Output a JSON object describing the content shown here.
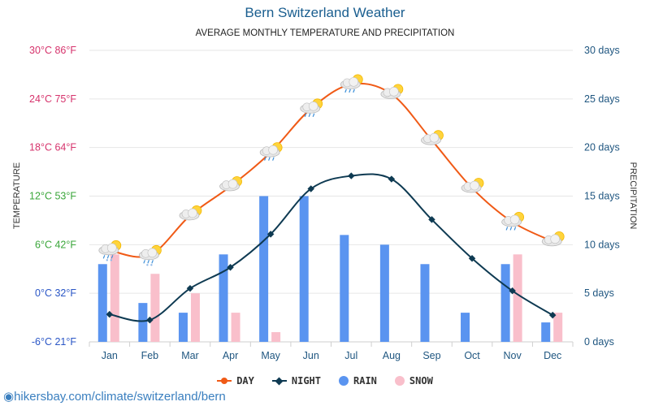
{
  "chart_data": {
    "type": "bar+line",
    "title": "Bern Switzerland Weather",
    "subtitle": "AVERAGE MONTHLY TEMPERATURE AND PRECIPITATION",
    "ylabel_left": "TEMPERATURE",
    "ylabel_right": "PRECIPITATION",
    "categories": [
      "Jan",
      "Feb",
      "Mar",
      "Apr",
      "May",
      "Jun",
      "Jul",
      "Aug",
      "Sep",
      "Oct",
      "Nov",
      "Dec"
    ],
    "left_axis": {
      "range": [
        -6,
        30
      ],
      "ticks": [
        {
          "value": 30,
          "label": "30°C 86°F",
          "color": "#d6336c"
        },
        {
          "value": 24,
          "label": "24°C 75°F",
          "color": "#d6336c"
        },
        {
          "value": 18,
          "label": "18°C 64°F",
          "color": "#d6336c"
        },
        {
          "value": 12,
          "label": "12°C 53°F",
          "color": "#3aa63a"
        },
        {
          "value": 6,
          "label": "6°C 42°F",
          "color": "#3aa63a"
        },
        {
          "value": 0,
          "label": "0°C 32°F",
          "color": "#2a56c6"
        },
        {
          "value": -6,
          "label": "-6°C 21°F",
          "color": "#2a56c6"
        }
      ]
    },
    "right_axis": {
      "range": [
        0,
        30
      ],
      "ticks": [
        {
          "value": 30,
          "label": "30 days"
        },
        {
          "value": 25,
          "label": "25 days"
        },
        {
          "value": 20,
          "label": "20 days"
        },
        {
          "value": 15,
          "label": "15 days"
        },
        {
          "value": 10,
          "label": "10 days"
        },
        {
          "value": 5,
          "label": "5 days"
        },
        {
          "value": 0,
          "label": "0 days"
        }
      ]
    },
    "series": [
      {
        "name": "DAY",
        "type": "line",
        "axis": "left",
        "color": "#f05a16",
        "values": [
          5.3,
          4.7,
          9.6,
          13.2,
          17.4,
          22.8,
          25.8,
          24.6,
          18.9,
          13.0,
          8.8,
          6.4
        ]
      },
      {
        "name": "NIGHT",
        "type": "line",
        "axis": "left",
        "color": "#0e3a52",
        "values": [
          -2.6,
          -3.3,
          0.6,
          3.2,
          7.3,
          12.9,
          14.5,
          14.1,
          9.1,
          4.3,
          0.3,
          -2.7
        ]
      },
      {
        "name": "RAIN",
        "type": "bar",
        "axis": "right",
        "color": "#5a94f0",
        "values": [
          8,
          4,
          3,
          9,
          15,
          15,
          11,
          10,
          8,
          3,
          8,
          2
        ]
      },
      {
        "name": "SNOW",
        "type": "bar",
        "axis": "right",
        "color": "#f9bfcb",
        "values": [
          9,
          7,
          5,
          3,
          1,
          0,
          0,
          0,
          0,
          0,
          9,
          3
        ]
      }
    ],
    "weather_icons": [
      "rain-snow",
      "rain-snow",
      "partly-cloudy",
      "partly-cloudy",
      "rain",
      "rain",
      "rain",
      "partly-cloudy",
      "partly-cloudy",
      "partly-cloudy",
      "rain",
      "partly-cloudy"
    ],
    "grid": true,
    "legend_position": "bottom"
  },
  "watermark": "hikersbay.com/climate/switzerland/bern"
}
